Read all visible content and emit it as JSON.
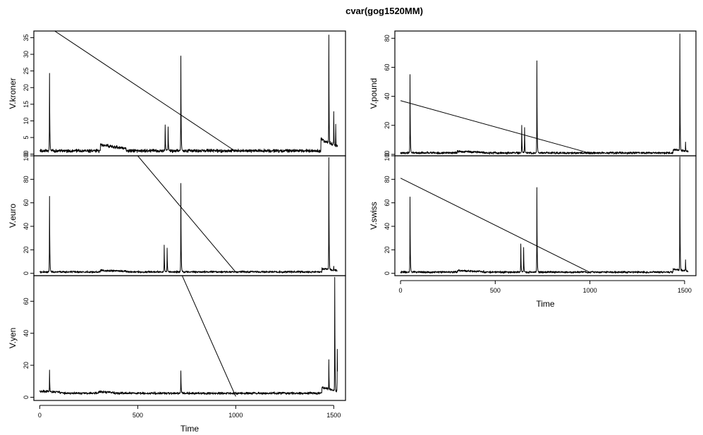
{
  "chart_data": {
    "type": "line",
    "title": "cvar(gog1520MM)",
    "xlabel": "Time",
    "xlim": [
      -30,
      1560
    ],
    "xticks": [
      0,
      500,
      1000,
      1500
    ],
    "n_points": 1520,
    "panels": [
      {
        "name": "V.kroner",
        "ylabel": "V.kroner",
        "ylim": [
          -0.5,
          37
        ],
        "yticks": [
          0,
          5,
          10,
          15,
          20,
          25,
          30,
          35
        ],
        "base": 1.0,
        "noise": 0.4,
        "regimes": [
          [
            310,
            440,
            2.8
          ],
          [
            1435,
            1520,
            4.5
          ]
        ],
        "spikes": [
          [
            50,
            24.3
          ],
          [
            640,
            8.8
          ],
          [
            655,
            8.2
          ],
          [
            720,
            29.5
          ],
          [
            1475,
            35.8
          ],
          [
            1500,
            12.8
          ],
          [
            1510,
            9.0
          ]
        ],
        "artifact_line": {
          "from": [
            0,
            40
          ],
          "to": [
            1000,
            0.8
          ]
        }
      },
      {
        "name": "V.euro",
        "ylabel": "V.euro",
        "ylim": [
          -2,
          100
        ],
        "yticks": [
          0,
          20,
          40,
          60,
          80,
          100
        ],
        "base": 1.2,
        "noise": 0.7,
        "regimes": [
          [
            310,
            440,
            2.5
          ],
          [
            1440,
            1520,
            4.0
          ]
        ],
        "spikes": [
          [
            50,
            65.5
          ],
          [
            635,
            24.0
          ],
          [
            650,
            21.5
          ],
          [
            720,
            76.5
          ],
          [
            1475,
            98.5
          ],
          [
            1500,
            6.0
          ]
        ],
        "artifact_line": {
          "from": [
            500,
            100
          ],
          "to": [
            1000,
            1.0
          ]
        }
      },
      {
        "name": "V.yen",
        "ylabel": "V.yen",
        "ylim": [
          -2,
          76
        ],
        "yticks": [
          0,
          20,
          40,
          60
        ],
        "base": 2.5,
        "noise": 0.6,
        "regimes": [
          [
            0,
            120,
            3.8
          ],
          [
            300,
            380,
            3.5
          ],
          [
            1440,
            1520,
            6.0
          ]
        ],
        "spikes": [
          [
            50,
            17.0
          ],
          [
            720,
            16.5
          ],
          [
            1475,
            23.5
          ],
          [
            1505,
            75.0
          ],
          [
            1518,
            30.0
          ]
        ],
        "artifact_line": {
          "from": [
            640,
            100
          ],
          "to": [
            1000,
            0.5
          ]
        }
      },
      {
        "name": "V.pound",
        "ylabel": "V.pound",
        "ylim": [
          -1,
          85
        ],
        "yticks": [
          0,
          20,
          40,
          60,
          80
        ],
        "base": 1.0,
        "noise": 0.6,
        "regimes": [
          [
            300,
            440,
            2.0
          ],
          [
            1440,
            1520,
            3.5
          ]
        ],
        "spikes": [
          [
            50,
            55.0
          ],
          [
            640,
            20.0
          ],
          [
            655,
            18.5
          ],
          [
            720,
            64.5
          ],
          [
            1475,
            83.0
          ],
          [
            1505,
            8.5
          ]
        ],
        "artifact_line": {
          "from": [
            0,
            37
          ],
          "to": [
            1000,
            0.8
          ]
        }
      },
      {
        "name": "V.swiss",
        "ylabel": "V.swiss",
        "ylim": [
          -2,
          100
        ],
        "yticks": [
          0,
          20,
          40,
          60,
          80,
          100
        ],
        "base": 1.0,
        "noise": 0.7,
        "regimes": [
          [
            300,
            440,
            2.2
          ],
          [
            1440,
            1520,
            3.5
          ]
        ],
        "spikes": [
          [
            50,
            65.0
          ],
          [
            635,
            25.0
          ],
          [
            650,
            22.0
          ],
          [
            720,
            73.0
          ],
          [
            1475,
            99.0
          ],
          [
            1505,
            11.5
          ]
        ],
        "artifact_line": {
          "from": [
            0,
            81
          ],
          "to": [
            1000,
            0.8
          ]
        }
      }
    ]
  }
}
